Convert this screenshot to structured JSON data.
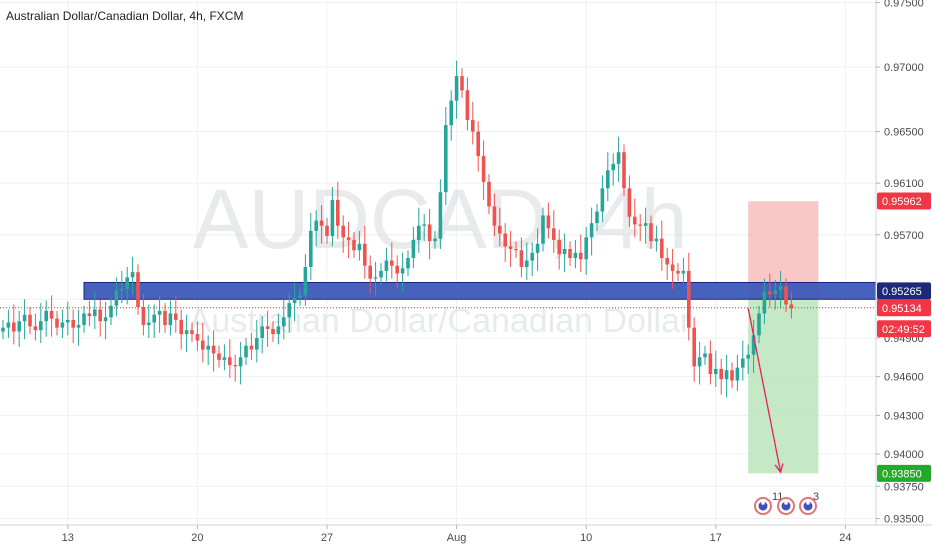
{
  "header": {
    "title": "Australian Dollar/Canadian Dollar, 4h, FXCM"
  },
  "watermark": {
    "symbol": "AUDCAD, 4h",
    "name": "Australian Dollar/Canadian Dollar"
  },
  "colors": {
    "up": "#26a69a",
    "down": "#ef5350",
    "zone": "#3d5ab8",
    "stop_zone": "#f8b4b4",
    "target_zone": "#b7e4b7",
    "arrow": "#e91e63",
    "current_line": "#e53935",
    "grid": "#eef0f3"
  },
  "social": {
    "icons": [
      "idea-icon",
      "idea-icon",
      "idea-icon"
    ],
    "likes": "11",
    "comments": "3"
  },
  "chart_data": {
    "type": "candlestick",
    "title": "Australian Dollar/Canadian Dollar, 4h, FXCM",
    "symbol": "AUDCAD",
    "timeframe": "4h",
    "x_ticks": [
      {
        "label": "13",
        "bar": 12
      },
      {
        "label": "20",
        "bar": 36
      },
      {
        "label": "27",
        "bar": 60
      },
      {
        "label": "Aug",
        "bar": 84
      },
      {
        "label": "10",
        "bar": 108
      },
      {
        "label": "17",
        "bar": 132
      },
      {
        "label": "24",
        "bar": 156
      }
    ],
    "y_ticks": [
      "0.93500",
      "0.93750",
      "0.94000",
      "0.94300",
      "0.94600",
      "0.94900",
      "0.95200",
      "0.95700",
      "0.96100",
      "0.96500",
      "0.97000",
      "0.97500"
    ],
    "ylim": [
      0.9345,
      0.9752
    ],
    "grid": true,
    "levels": {
      "stop_loss": "0.95962",
      "resistance_zone": "0.95265",
      "last_price": "0.95134",
      "countdown": "02:49:52",
      "target": "0.93850"
    },
    "zone_low": 0.952,
    "zone_high": 0.9533,
    "zone_start_bar": 15,
    "entry": 0.9521,
    "stop": 0.9596,
    "target": 0.9385,
    "position_bars": [
      138,
      151
    ],
    "arrow": {
      "from_bar": 138,
      "from_value": 0.9513,
      "to_bar": 144,
      "to_value": 0.9386
    },
    "closes": [
      0.9498,
      0.9502,
      0.9495,
      0.9503,
      0.9508,
      0.9499,
      0.9496,
      0.9503,
      0.9511,
      0.9505,
      0.9498,
      0.9502,
      0.9504,
      0.9498,
      0.95,
      0.9509,
      0.9507,
      0.9512,
      0.9503,
      0.9506,
      0.9515,
      0.9527,
      0.9528,
      0.9537,
      0.9541,
      0.9514,
      0.95,
      0.9502,
      0.9508,
      0.9511,
      0.95,
      0.9509,
      0.9504,
      0.9493,
      0.9496,
      0.9493,
      0.9488,
      0.9481,
      0.9484,
      0.9478,
      0.9473,
      0.9475,
      0.9469,
      0.9468,
      0.9475,
      0.9484,
      0.9481,
      0.949,
      0.9499,
      0.9497,
      0.9493,
      0.9499,
      0.9506,
      0.9517,
      0.9521,
      0.9523,
      0.9545,
      0.9573,
      0.9581,
      0.9577,
      0.9569,
      0.9597,
      0.9577,
      0.9568,
      0.9566,
      0.9558,
      0.9563,
      0.9546,
      0.9536,
      0.9537,
      0.9542,
      0.955,
      0.9546,
      0.954,
      0.9544,
      0.9552,
      0.9566,
      0.9577,
      0.9578,
      0.9565,
      0.9567,
      0.9603,
      0.9655,
      0.9674,
      0.9693,
      0.9682,
      0.9659,
      0.965,
      0.9631,
      0.9611,
      0.9592,
      0.9577,
      0.9571,
      0.9561,
      0.9559,
      0.9558,
      0.9545,
      0.955,
      0.9556,
      0.9563,
      0.9585,
      0.9575,
      0.9566,
      0.9555,
      0.9559,
      0.9552,
      0.9556,
      0.9551,
      0.9568,
      0.9579,
      0.9588,
      0.9606,
      0.962,
      0.9625,
      0.9634,
      0.9606,
      0.9584,
      0.9578,
      0.9577,
      0.9579,
      0.9565,
      0.9567,
      0.9552,
      0.9547,
      0.9542,
      0.954,
      0.9542,
      0.9498,
      0.9468,
      0.9475,
      0.9478,
      0.9462,
      0.9466,
      0.9458,
      0.9465,
      0.9457,
      0.9467,
      0.9474,
      0.9477,
      0.9492,
      0.9509,
      0.9526,
      0.9524,
      0.9527,
      0.953,
      0.9516,
      0.9513
    ],
    "opens": [
      0.9495,
      0.9498,
      0.9502,
      0.9495,
      0.9503,
      0.9508,
      0.9499,
      0.9496,
      0.9503,
      0.9511,
      0.9505,
      0.9498,
      0.9502,
      0.9504,
      0.9498,
      0.95,
      0.9509,
      0.9507,
      0.9512,
      0.9503,
      0.9506,
      0.9515,
      0.9527,
      0.9528,
      0.9537,
      0.9541,
      0.9514,
      0.95,
      0.9502,
      0.9508,
      0.9511,
      0.95,
      0.9509,
      0.9504,
      0.9493,
      0.9496,
      0.9493,
      0.9488,
      0.9481,
      0.9484,
      0.9478,
      0.9473,
      0.9475,
      0.9469,
      0.9468,
      0.9475,
      0.9484,
      0.9481,
      0.949,
      0.9499,
      0.9497,
      0.9493,
      0.9499,
      0.9506,
      0.9517,
      0.9521,
      0.9523,
      0.9545,
      0.9573,
      0.9581,
      0.9577,
      0.9569,
      0.9597,
      0.9577,
      0.9568,
      0.9566,
      0.9558,
      0.9563,
      0.9546,
      0.9536,
      0.9537,
      0.9542,
      0.955,
      0.9546,
      0.954,
      0.9544,
      0.9552,
      0.9566,
      0.9577,
      0.9578,
      0.9565,
      0.9567,
      0.9603,
      0.9655,
      0.9674,
      0.9693,
      0.9682,
      0.9659,
      0.965,
      0.9631,
      0.9611,
      0.9592,
      0.9577,
      0.9571,
      0.9561,
      0.9559,
      0.9558,
      0.9545,
      0.955,
      0.9556,
      0.9563,
      0.9585,
      0.9575,
      0.9566,
      0.9555,
      0.9559,
      0.9552,
      0.9556,
      0.9551,
      0.9568,
      0.9579,
      0.9588,
      0.9606,
      0.962,
      0.9625,
      0.9634,
      0.9606,
      0.9584,
      0.9578,
      0.9577,
      0.9579,
      0.9565,
      0.9567,
      0.9552,
      0.9547,
      0.9542,
      0.954,
      0.9542,
      0.9498,
      0.9468,
      0.9475,
      0.9478,
      0.9462,
      0.9466,
      0.9458,
      0.9465,
      0.9457,
      0.9467,
      0.9474,
      0.9477,
      0.9492,
      0.9509,
      0.9526,
      0.9524,
      0.9527,
      0.953,
      0.9516
    ]
  }
}
